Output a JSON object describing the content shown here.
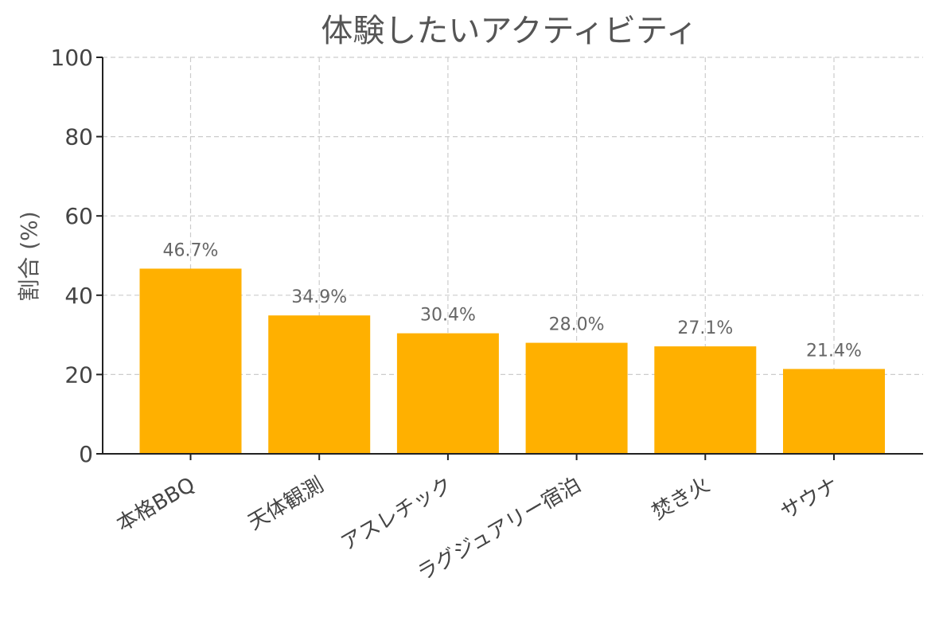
{
  "chart_data": {
    "type": "bar",
    "title": "体験したいアクティビティ",
    "xlabel": "",
    "ylabel": "割合 (%)",
    "categories": [
      "本格BBQ",
      "天体観測",
      "アスレチック",
      "ラグジュアリー宿泊",
      "焚き火",
      "サウナ"
    ],
    "values": [
      46.7,
      34.9,
      30.4,
      28.0,
      27.1,
      21.4
    ],
    "data_labels": [
      "46.7%",
      "34.9%",
      "30.4%",
      "28.0%",
      "27.1%",
      "21.4%"
    ],
    "ylim": [
      0,
      100
    ],
    "yticks": [
      0,
      20,
      40,
      60,
      80,
      100
    ],
    "grid": true,
    "bar_color": "#FFB000"
  }
}
